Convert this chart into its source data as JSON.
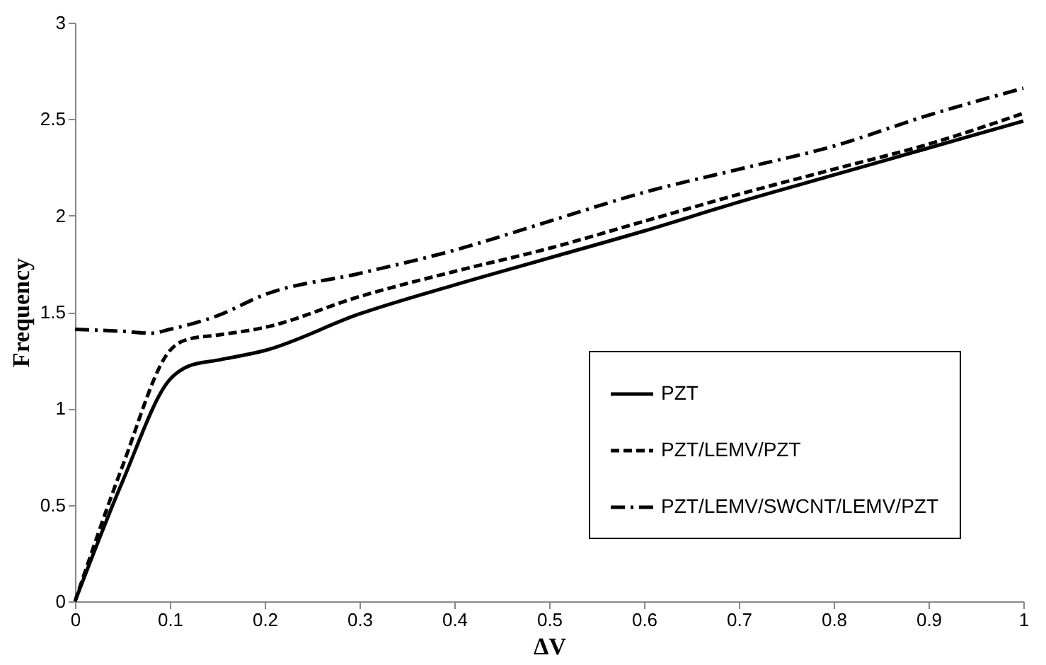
{
  "chart_data": {
    "type": "line",
    "xlabel": "ΔV",
    "ylabel": "Frequency",
    "xlim": [
      0,
      1
    ],
    "xticks": [
      0,
      0.1,
      0.2,
      0.3,
      0.4,
      0.5,
      0.6,
      0.7,
      0.8,
      0.9,
      1
    ],
    "ylim": [
      0,
      3
    ],
    "yticks": [
      0,
      0.5,
      1,
      1.5,
      2,
      2.5,
      3
    ],
    "grid": false,
    "legend": "bottom right",
    "marker": "none",
    "series": [
      {
        "name": "PZT",
        "color": "#000000",
        "line_style": "solid",
        "x": [
          0,
          0.05,
          0.1,
          0.12,
          0.15,
          0.2,
          0.3,
          0.4,
          0.5,
          0.6,
          0.7,
          0.8,
          0.9,
          1
        ],
        "values": [
          0,
          0.62,
          1.15,
          1.22,
          1.25,
          1.3,
          1.49,
          1.64,
          1.78,
          1.92,
          2.07,
          2.21,
          2.35,
          2.49
        ]
      },
      {
        "name": "PZT/LEMV/PZT",
        "color": "#000000",
        "line_style": "dashed",
        "x": [
          0,
          0.05,
          0.1,
          0.12,
          0.15,
          0.2,
          0.3,
          0.4,
          0.5,
          0.6,
          0.7,
          0.8,
          0.9,
          1
        ],
        "values": [
          0,
          0.7,
          1.3,
          1.36,
          1.38,
          1.42,
          1.58,
          1.71,
          1.83,
          1.97,
          2.11,
          2.24,
          2.37,
          2.53
        ]
      },
      {
        "name": "PZT/LEMV/SWCNT/LEMV/PZT",
        "color": "#000000",
        "line_style": "dashdot",
        "x": [
          0,
          0.05,
          0.08,
          0.1,
          0.15,
          0.2,
          0.3,
          0.4,
          0.5,
          0.6,
          0.7,
          0.8,
          0.9,
          1
        ],
        "values": [
          1.41,
          1.4,
          1.39,
          1.41,
          1.48,
          1.59,
          1.7,
          1.82,
          1.97,
          2.12,
          2.24,
          2.36,
          2.52,
          2.66
        ]
      }
    ]
  }
}
